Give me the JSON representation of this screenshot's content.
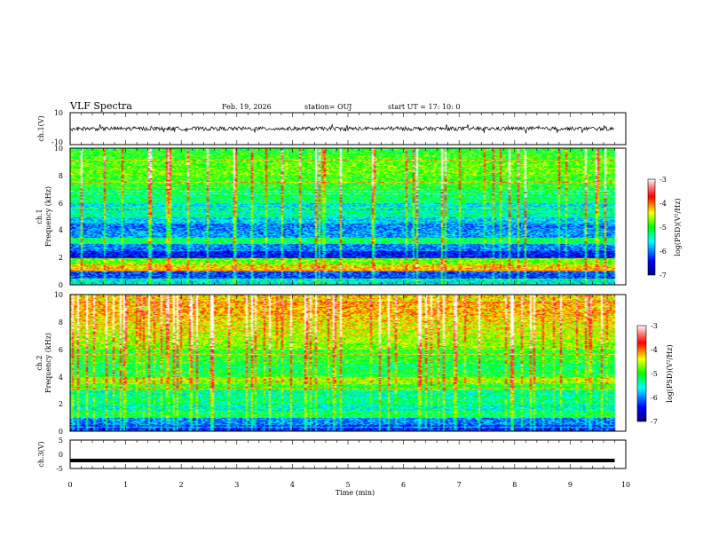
{
  "header": {
    "title": "VLF Spectra",
    "date": "Feb. 19, 2026",
    "station": "station= OUJ",
    "start_ut": "start  UT =   17: 10: 0"
  },
  "chart_data": [
    {
      "type": "line",
      "name": "ch1-waveform",
      "ylabel": "ch.1(V)",
      "ylim": [
        -10,
        10
      ],
      "yticks": [
        "10",
        "-10"
      ],
      "x": [
        0,
        0.5,
        1,
        1.5,
        2,
        2.5,
        3,
        3.5,
        4,
        4.5,
        5,
        5.5,
        6,
        6.5,
        7,
        7.5,
        8,
        8.5,
        9,
        9.5,
        9.8
      ],
      "values": [
        0,
        0,
        0,
        0,
        0,
        0,
        0,
        0,
        0,
        0,
        0,
        0,
        0,
        0,
        0,
        0,
        0,
        0,
        0,
        0,
        0
      ],
      "envelope": 1.2
    },
    {
      "type": "heatmap",
      "name": "ch1-spectrogram",
      "ylabel_line1": "ch.1",
      "ylabel_line2": "Frequency  (kHz)",
      "ylim": [
        0,
        10
      ],
      "yticks": [
        "0",
        "2",
        "4",
        "6",
        "8",
        "10"
      ],
      "colorbar_label": "log(PSD)(V²/Hz)",
      "colorbar_range": [
        -7,
        -3
      ],
      "colorbar_ticks": [
        "-3",
        "-4",
        "-5",
        "-6",
        "-7"
      ],
      "band_level_log_psd": [
        -5.6,
        -6.2,
        -4.3,
        -4.8,
        -6.4,
        -6.0,
        -5.2,
        -5.9,
        -6.0,
        -5.7,
        -5.4,
        -5.6,
        -5.2,
        -5.3,
        -5.0,
        -4.9,
        -4.8,
        -4.8,
        -4.9,
        -5.0
      ]
    },
    {
      "type": "heatmap",
      "name": "ch2-spectrogram",
      "ylabel_line1": "ch.2",
      "ylabel_line2": "Frequency  (kHz)",
      "ylim": [
        0,
        10
      ],
      "yticks": [
        "0",
        "2",
        "4",
        "6",
        "8",
        "10"
      ],
      "colorbar_label": "log(PSD)(V²/Hz)",
      "colorbar_range": [
        -7,
        -3
      ],
      "colorbar_ticks": [
        "-3",
        "-4",
        "-5",
        "-6",
        "-7"
      ],
      "band_level_log_psd": [
        -6.3,
        -6.0,
        -5.2,
        -5.5,
        -5.3,
        -5.4,
        -5.0,
        -4.6,
        -5.1,
        -5.2,
        -5.0,
        -5.0,
        -4.7,
        -4.6,
        -4.5,
        -4.4,
        -4.3,
        -4.2,
        -4.2,
        -4.3
      ]
    },
    {
      "type": "line",
      "name": "ch3-waveform",
      "ylabel": "ch.3(V)",
      "ylim": [
        -5,
        5
      ],
      "yticks": [
        "5",
        "0",
        "-5"
      ],
      "x": [
        0,
        9.8
      ],
      "values": [
        -2.2,
        -2.2
      ]
    }
  ],
  "xaxis": {
    "xlabel": "Time  (min)",
    "xlim": [
      0,
      10
    ],
    "ticks": [
      "0",
      "1",
      "2",
      "3",
      "4",
      "5",
      "6",
      "7",
      "8",
      "9",
      "10"
    ],
    "data_end_min": 9.8
  }
}
